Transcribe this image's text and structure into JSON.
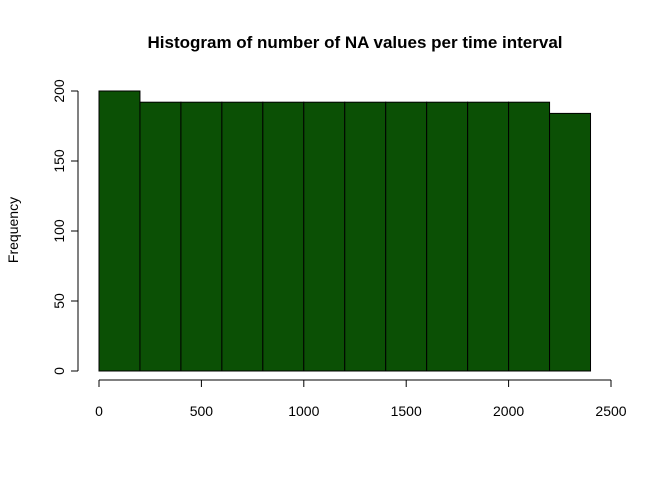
{
  "chart_data": {
    "type": "bar",
    "title": "Histogram of number of NA values per time interval",
    "xlabel": "",
    "ylabel": "Frequency",
    "bin_edges": [
      0,
      200,
      400,
      600,
      800,
      1000,
      1200,
      1400,
      1600,
      1800,
      2000,
      2200,
      2400
    ],
    "values": [
      200,
      192,
      192,
      192,
      192,
      192,
      192,
      192,
      192,
      192,
      192,
      184
    ],
    "xlim": [
      0,
      2500
    ],
    "ylim": [
      0,
      200
    ],
    "x_ticks": [
      "0",
      "500",
      "1000",
      "1500",
      "2000",
      "2500"
    ],
    "y_ticks": [
      "0",
      "50",
      "100",
      "150",
      "200"
    ],
    "bar_color": "#0b5005",
    "grid": false,
    "legend": "none"
  }
}
